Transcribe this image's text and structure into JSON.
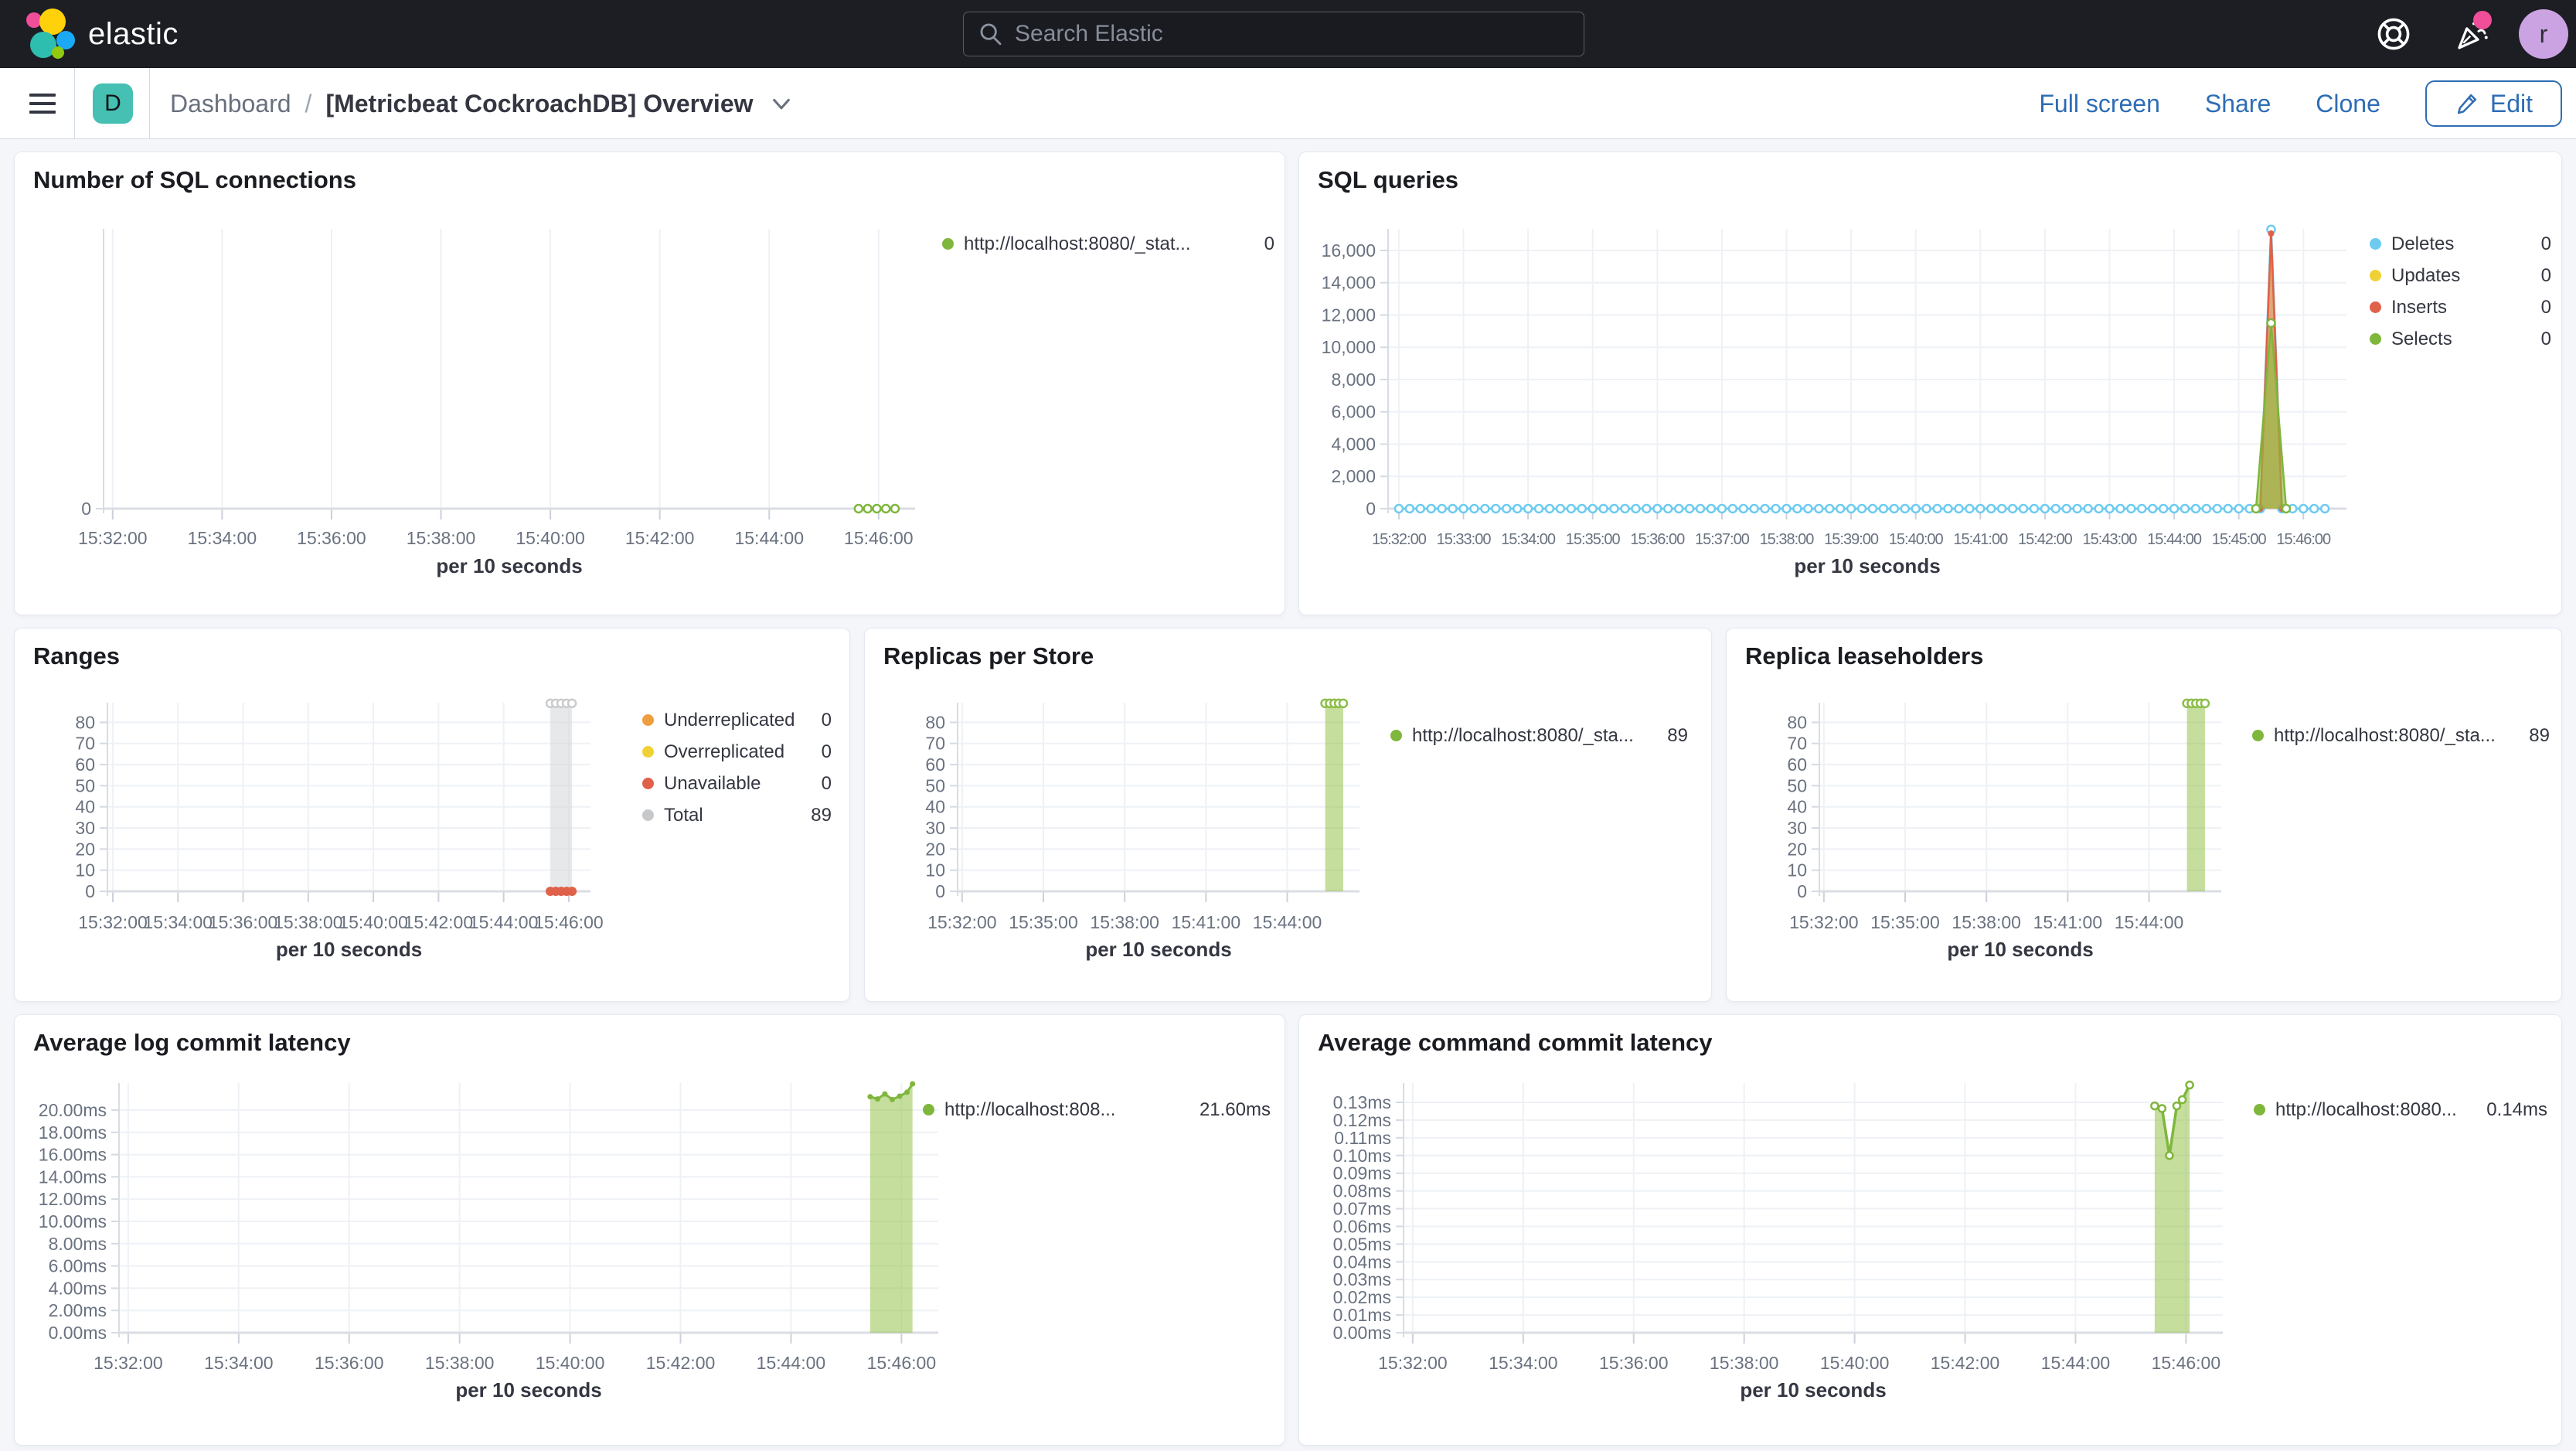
{
  "header": {
    "logo_text": "elastic",
    "search_placeholder": "Search Elastic",
    "avatar_initial": "r"
  },
  "toolbar": {
    "badge": "D",
    "breadcrumb_root": "Dashboard",
    "breadcrumb_sep": "/",
    "title": "[Metricbeat CockroachDB] Overview",
    "actions": [
      "Full screen",
      "Share",
      "Clone"
    ],
    "edit_label": "Edit"
  },
  "colors": {
    "header_bg": "#1D1E24",
    "link_blue": "#2E6DB4",
    "badge_teal": "#45C0B2",
    "notification_pink": "#F04E98",
    "avatar_purple": "#CBA3E2",
    "series_green": "#7FB63C",
    "series_blue": "#6DCBF0",
    "series_yellow": "#F0D135",
    "series_red": "#E0614A",
    "series_orange": "#EE9E3C",
    "series_gray": "#C6C8CA"
  },
  "chart_data": [
    {
      "type": "line",
      "title": "Number of SQL connections",
      "xlabel": "per 10 seconds",
      "x_min": 10,
      "x_max": 900,
      "y_max": 1,
      "x_ticks": [
        {
          "t": 20,
          "label": "15:32:00"
        },
        {
          "t": 140,
          "label": "15:34:00"
        },
        {
          "t": 260,
          "label": "15:36:00"
        },
        {
          "t": 380,
          "label": "15:38:00"
        },
        {
          "t": 500,
          "label": "15:40:00"
        },
        {
          "t": 620,
          "label": "15:42:00"
        },
        {
          "t": 740,
          "label": "15:44:00"
        },
        {
          "t": 860,
          "label": "15:46:00"
        }
      ],
      "y_ticks": [
        {
          "v": 0,
          "label": "0"
        }
      ],
      "series": [
        {
          "name": "http://localhost:8080/_stat...",
          "color": "#7FB63C",
          "fill": null,
          "line_width": 3,
          "markers": {
            "style": "hollow",
            "r": 5
          },
          "flat": {
            "from": 838,
            "to": 878,
            "step": 10,
            "value": 0
          },
          "points": []
        }
      ],
      "legend": [
        {
          "label": "http://localhost:8080/_stat...",
          "value": "0",
          "color": "#7FB63C"
        }
      ]
    },
    {
      "type": "line",
      "title": "SQL queries",
      "xlabel": "per 10 seconds",
      "x_min": 10,
      "x_max": 900,
      "y_max": 17340,
      "x_ticks": [
        {
          "t": 20,
          "label": "15:32:00"
        },
        {
          "t": 80,
          "label": "15:33:00"
        },
        {
          "t": 140,
          "label": "15:34:00"
        },
        {
          "t": 200,
          "label": "15:35:00"
        },
        {
          "t": 260,
          "label": "15:36:00"
        },
        {
          "t": 320,
          "label": "15:37:00"
        },
        {
          "t": 380,
          "label": "15:38:00"
        },
        {
          "t": 440,
          "label": "15:39:00"
        },
        {
          "t": 500,
          "label": "15:40:00"
        },
        {
          "t": 560,
          "label": "15:41:00"
        },
        {
          "t": 620,
          "label": "15:42:00"
        },
        {
          "t": 680,
          "label": "15:43:00"
        },
        {
          "t": 740,
          "label": "15:44:00"
        },
        {
          "t": 800,
          "label": "15:45:00"
        },
        {
          "t": 860,
          "label": "15:46:00"
        }
      ],
      "y_ticks": [
        {
          "v": 0,
          "label": "0"
        },
        {
          "v": 2000,
          "label": "2,000"
        },
        {
          "v": 4000,
          "label": "4,000"
        },
        {
          "v": 6000,
          "label": "6,000"
        },
        {
          "v": 8000,
          "label": "8,000"
        },
        {
          "v": 10000,
          "label": "10,000"
        },
        {
          "v": 12000,
          "label": "12,000"
        },
        {
          "v": 14000,
          "label": "14,000"
        },
        {
          "v": 16000,
          "label": "16,000"
        }
      ],
      "series": [
        {
          "name": "Deletes",
          "color": "#6DCBF0",
          "fill": "rgba(109,203,240,0.28)",
          "line_width": 3,
          "markers": {
            "style": "hollow",
            "r": 5
          },
          "flat": {
            "from": 20,
            "to": 880,
            "step": 10,
            "value": 0
          },
          "points": [
            [
              830,
              17300
            ]
          ]
        },
        {
          "name": "Updates",
          "color": "#F0D135",
          "fill": "rgba(240,209,53,0.45)",
          "line_width": 2.5,
          "markers": null,
          "flat": null,
          "points": [
            [
              820,
              0
            ],
            [
              830,
              16700
            ],
            [
              840,
              0
            ]
          ]
        },
        {
          "name": "Inserts",
          "color": "#E0614A",
          "fill": "rgba(224,97,74,0.45)",
          "line_width": 2.5,
          "markers": {
            "style": "solid",
            "r": 4
          },
          "flat": null,
          "points": [
            [
              820,
              0
            ],
            [
              830,
              17050
            ],
            [
              840,
              0
            ]
          ]
        },
        {
          "name": "Selects",
          "color": "#7FB63C",
          "fill": "rgba(139,189,60,0.6)",
          "line_width": 2.5,
          "markers": {
            "style": "hollow",
            "r": 5
          },
          "flat": null,
          "points": [
            [
              816,
              0
            ],
            [
              830,
              11500
            ],
            [
              844,
              0
            ]
          ]
        }
      ],
      "legend": [
        {
          "label": "Deletes",
          "value": "0",
          "color": "#6DCBF0"
        },
        {
          "label": "Updates",
          "value": "0",
          "color": "#F0D135"
        },
        {
          "label": "Inserts",
          "value": "0",
          "color": "#E0614A"
        },
        {
          "label": "Selects",
          "value": "0",
          "color": "#7FB63C"
        }
      ]
    },
    {
      "type": "line",
      "title": "Ranges",
      "xlabel": "per 10 seconds",
      "x_min": 10,
      "x_max": 900,
      "y_max": 89.3,
      "x_ticks": [
        {
          "t": 20,
          "label": "15:32:00"
        },
        {
          "t": 140,
          "label": "15:34:00"
        },
        {
          "t": 260,
          "label": "15:36:00"
        },
        {
          "t": 380,
          "label": "15:38:00"
        },
        {
          "t": 500,
          "label": "15:40:00"
        },
        {
          "t": 620,
          "label": "15:42:00"
        },
        {
          "t": 740,
          "label": "15:44:00"
        },
        {
          "t": 860,
          "label": "15:46:00"
        }
      ],
      "y_ticks": [
        {
          "v": 0,
          "label": "0"
        },
        {
          "v": 10,
          "label": "10"
        },
        {
          "v": 20,
          "label": "20"
        },
        {
          "v": 30,
          "label": "30"
        },
        {
          "v": 40,
          "label": "40"
        },
        {
          "v": 50,
          "label": "50"
        },
        {
          "v": 60,
          "label": "60"
        },
        {
          "v": 70,
          "label": "70"
        },
        {
          "v": 80,
          "label": "80"
        }
      ],
      "series": [
        {
          "name": "Total",
          "color": "#C9CBCD",
          "fill": "rgba(212,214,216,0.55)",
          "line_width": 2,
          "markers": {
            "style": "hollow",
            "r": 5
          },
          "flat": null,
          "points": [
            [
              826,
              89
            ],
            [
              836,
              89
            ],
            [
              846,
              89
            ],
            [
              856,
              89
            ],
            [
              866,
              89
            ]
          ]
        },
        {
          "name": "Unavailable",
          "color": "#E0614A",
          "fill": null,
          "line_width": 0,
          "markers": {
            "style": "solid",
            "r": 6
          },
          "flat": null,
          "points": [
            [
              826,
              0
            ],
            [
              836,
              0
            ],
            [
              846,
              0
            ],
            [
              856,
              0
            ],
            [
              866,
              0
            ]
          ]
        }
      ],
      "legend": [
        {
          "label": "Underreplicated",
          "value": "0",
          "color": "#EE9E3C"
        },
        {
          "label": "Overreplicated",
          "value": "0",
          "color": "#F0D135"
        },
        {
          "label": "Unavailable",
          "value": "0",
          "color": "#E0614A"
        },
        {
          "label": "Total",
          "value": "89",
          "color": "#C6C8CA"
        }
      ]
    },
    {
      "type": "line",
      "title": "Replicas per Store",
      "xlabel": "per 10 seconds",
      "x_min": 10,
      "x_max": 900,
      "y_max": 89.3,
      "x_ticks": [
        {
          "t": 20,
          "label": "15:32:00"
        },
        {
          "t": 200,
          "label": "15:35:00"
        },
        {
          "t": 380,
          "label": "15:38:00"
        },
        {
          "t": 560,
          "label": "15:41:00"
        },
        {
          "t": 740,
          "label": "15:44:00"
        }
      ],
      "y_ticks": [
        {
          "v": 0,
          "label": "0"
        },
        {
          "v": 10,
          "label": "10"
        },
        {
          "v": 20,
          "label": "20"
        },
        {
          "v": 30,
          "label": "30"
        },
        {
          "v": 40,
          "label": "40"
        },
        {
          "v": 50,
          "label": "50"
        },
        {
          "v": 60,
          "label": "60"
        },
        {
          "v": 70,
          "label": "70"
        },
        {
          "v": 80,
          "label": "80"
        }
      ],
      "series": [
        {
          "name": "http://localhost:8080/_sta...",
          "color": "#8CBE48",
          "fill": "rgba(139,189,60,0.5)",
          "line_width": 2.5,
          "markers": {
            "style": "hollow",
            "r": 5
          },
          "flat": null,
          "points": [
            [
              824,
              89
            ],
            [
              834,
              89
            ],
            [
              844,
              89
            ],
            [
              854,
              89
            ],
            [
              864,
              89
            ]
          ]
        }
      ],
      "legend": [
        {
          "label": "http://localhost:8080/_sta...",
          "value": "89",
          "color": "#7FB63C"
        }
      ]
    },
    {
      "type": "line",
      "title": "Replica leaseholders",
      "xlabel": "per 10 seconds",
      "x_min": 10,
      "x_max": 900,
      "y_max": 89.3,
      "x_ticks": [
        {
          "t": 20,
          "label": "15:32:00"
        },
        {
          "t": 200,
          "label": "15:35:00"
        },
        {
          "t": 380,
          "label": "15:38:00"
        },
        {
          "t": 560,
          "label": "15:41:00"
        },
        {
          "t": 740,
          "label": "15:44:00"
        }
      ],
      "y_ticks": [
        {
          "v": 0,
          "label": "0"
        },
        {
          "v": 10,
          "label": "10"
        },
        {
          "v": 20,
          "label": "20"
        },
        {
          "v": 30,
          "label": "30"
        },
        {
          "v": 40,
          "label": "40"
        },
        {
          "v": 50,
          "label": "50"
        },
        {
          "v": 60,
          "label": "60"
        },
        {
          "v": 70,
          "label": "70"
        },
        {
          "v": 80,
          "label": "80"
        }
      ],
      "series": [
        {
          "name": "http://localhost:8080/_sta...",
          "color": "#8CBE48",
          "fill": "rgba(139,189,60,0.5)",
          "line_width": 2.5,
          "markers": {
            "style": "hollow",
            "r": 5
          },
          "flat": null,
          "points": [
            [
              824,
              89
            ],
            [
              834,
              89
            ],
            [
              844,
              89
            ],
            [
              854,
              89
            ],
            [
              864,
              89
            ]
          ]
        }
      ],
      "legend": [
        {
          "label": "http://localhost:8080/_sta...",
          "value": "89",
          "color": "#7FB63C"
        }
      ]
    },
    {
      "type": "line",
      "title": "Average log commit latency",
      "xlabel": "per 10 seconds",
      "x_min": 10,
      "x_max": 900,
      "y_max": 22.43,
      "x_ticks": [
        {
          "t": 20,
          "label": "15:32:00"
        },
        {
          "t": 140,
          "label": "15:34:00"
        },
        {
          "t": 260,
          "label": "15:36:00"
        },
        {
          "t": 380,
          "label": "15:38:00"
        },
        {
          "t": 500,
          "label": "15:40:00"
        },
        {
          "t": 620,
          "label": "15:42:00"
        },
        {
          "t": 740,
          "label": "15:44:00"
        },
        {
          "t": 860,
          "label": "15:46:00"
        }
      ],
      "y_ticks": [
        {
          "v": 0,
          "label": "0.00ms"
        },
        {
          "v": 2,
          "label": "2.00ms"
        },
        {
          "v": 4,
          "label": "4.00ms"
        },
        {
          "v": 6,
          "label": "6.00ms"
        },
        {
          "v": 8,
          "label": "8.00ms"
        },
        {
          "v": 10,
          "label": "10.00ms"
        },
        {
          "v": 12,
          "label": "12.00ms"
        },
        {
          "v": 14,
          "label": "14.00ms"
        },
        {
          "v": 16,
          "label": "16.00ms"
        },
        {
          "v": 18,
          "label": "18.00ms"
        },
        {
          "v": 20,
          "label": "20.00ms"
        }
      ],
      "series": [
        {
          "name": "http://localhost:808...",
          "color": "#7FB63C",
          "fill": "rgba(139,189,60,0.5)",
          "line_width": 3,
          "markers": {
            "style": "solid",
            "r": 3.5
          },
          "flat": null,
          "points": [
            [
              826,
              21.2
            ],
            [
              834,
              21.0
            ],
            [
              842,
              21.45
            ],
            [
              850,
              20.95
            ],
            [
              858,
              21.25
            ],
            [
              866,
              21.6
            ],
            [
              872,
              22.35
            ]
          ]
        }
      ],
      "legend": [
        {
          "label": "http://localhost:808...",
          "value": "21.60ms",
          "color": "#7FB63C"
        }
      ]
    },
    {
      "type": "line",
      "title": "Average command commit latency",
      "xlabel": "per 10 seconds",
      "x_min": 10,
      "x_max": 900,
      "y_max": 0.1409,
      "x_ticks": [
        {
          "t": 20,
          "label": "15:32:00"
        },
        {
          "t": 140,
          "label": "15:34:00"
        },
        {
          "t": 260,
          "label": "15:36:00"
        },
        {
          "t": 380,
          "label": "15:38:00"
        },
        {
          "t": 500,
          "label": "15:40:00"
        },
        {
          "t": 620,
          "label": "15:42:00"
        },
        {
          "t": 740,
          "label": "15:44:00"
        },
        {
          "t": 860,
          "label": "15:46:00"
        }
      ],
      "y_ticks": [
        {
          "v": 0,
          "label": "0.00ms"
        },
        {
          "v": 0.01,
          "label": "0.01ms"
        },
        {
          "v": 0.02,
          "label": "0.02ms"
        },
        {
          "v": 0.03,
          "label": "0.03ms"
        },
        {
          "v": 0.04,
          "label": "0.04ms"
        },
        {
          "v": 0.05,
          "label": "0.05ms"
        },
        {
          "v": 0.06,
          "label": "0.06ms"
        },
        {
          "v": 0.07,
          "label": "0.07ms"
        },
        {
          "v": 0.08,
          "label": "0.08ms"
        },
        {
          "v": 0.09,
          "label": "0.09ms"
        },
        {
          "v": 0.1,
          "label": "0.10ms"
        },
        {
          "v": 0.11,
          "label": "0.11ms"
        },
        {
          "v": 0.12,
          "label": "0.12ms"
        },
        {
          "v": 0.13,
          "label": "0.13ms"
        }
      ],
      "series": [
        {
          "name": "http://localhost:8080...",
          "color": "#7FB63C",
          "fill": "rgba(139,189,60,0.5)",
          "line_width": 3.5,
          "markers": {
            "style": "hollow",
            "r": 4.5
          },
          "flat": null,
          "points": [
            [
              826,
              0.128
            ],
            [
              834,
              0.1265
            ],
            [
              842,
              0.1
            ],
            [
              850,
              0.128
            ],
            [
              856,
              0.1315
            ],
            [
              864,
              0.1398
            ]
          ]
        }
      ],
      "legend": [
        {
          "label": "http://localhost:8080...",
          "value": "0.14ms",
          "color": "#7FB63C"
        }
      ]
    }
  ]
}
